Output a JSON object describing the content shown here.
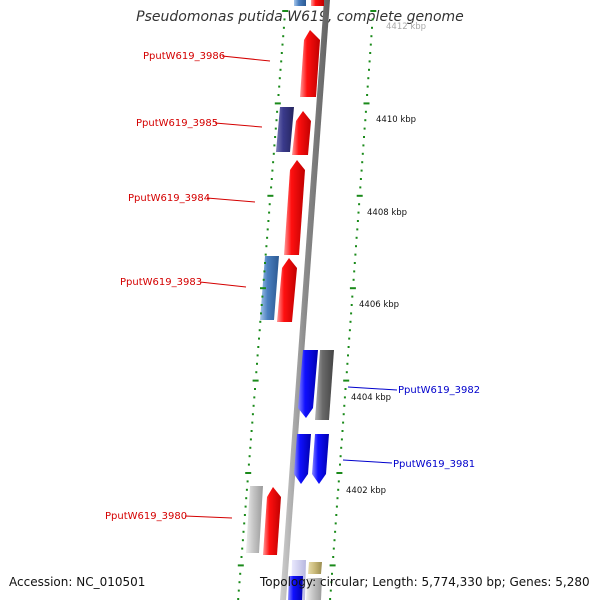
{
  "title": "Pseudomonas putida W619, complete genome",
  "accession": "Accession: NC_010501",
  "topology": "Topology: circular; Length: 5,774,330 bp; Genes: 5,280",
  "kbp_labels": [
    "4412 kbp",
    "4410 kbp",
    "4408 kbp",
    "4406 kbp",
    "4404 kbp",
    "4402 kbp"
  ],
  "genes": [
    {
      "name": "PputW619_3986",
      "strand": "forward",
      "color": "#d40000"
    },
    {
      "name": "PputW619_3985",
      "strand": "forward",
      "color": "#d40000"
    },
    {
      "name": "PputW619_3984",
      "strand": "forward",
      "color": "#d40000"
    },
    {
      "name": "PputW619_3983",
      "strand": "forward",
      "color": "#d40000"
    },
    {
      "name": "PputW619_3982",
      "strand": "reverse",
      "color": "#0000cc"
    },
    {
      "name": "PputW619_3981",
      "strand": "reverse",
      "color": "#0000cc"
    },
    {
      "name": "PputW619_3980",
      "strand": "forward",
      "color": "#d40000"
    }
  ],
  "colors": {
    "forward_cds": "#ff0000",
    "reverse_cds": "#0000ff",
    "backbone": "#8c8c8c",
    "tick": "#1a8a1a",
    "navy_feature": "#3a3a8c",
    "steel_feature": "#4a7fc0",
    "grey_feature": "#6a6a6a",
    "light_grey_feature": "#c8c8c8",
    "khaki_feature": "#c8b878"
  }
}
